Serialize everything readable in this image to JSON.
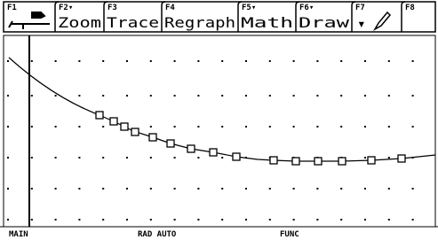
{
  "toolbar": [
    {
      "key": "F1"
    },
    {
      "key": "F2▾",
      "label": "Zoom"
    },
    {
      "key": "F3",
      "label": "Trace"
    },
    {
      "key": "F4",
      "label": "Regraph"
    },
    {
      "key": "F5▾",
      "label": "Math"
    },
    {
      "key": "F6▾",
      "label": "Draw"
    },
    {
      "key": "F7"
    },
    {
      "key": "F8"
    }
  ],
  "status": {
    "mode": "MAIN",
    "angle": "RAD AUTO",
    "graph": "FUNC"
  }
}
